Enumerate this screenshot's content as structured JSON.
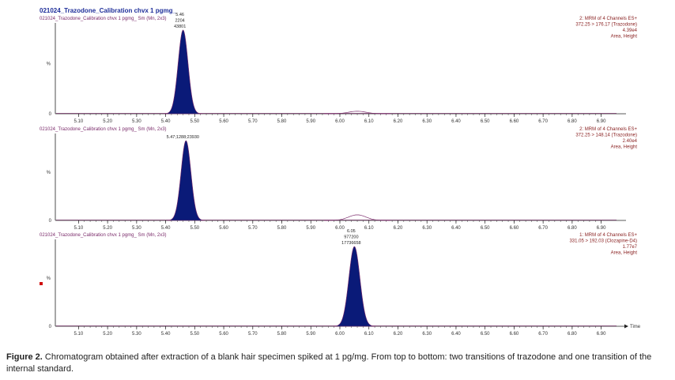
{
  "title": "021024_Trazodone_Calibration chvx 1 pgmg_",
  "caption_label": "Figure 2.",
  "caption_text": " Chromatogram obtained after extraction of a blank hair specimen spiked at 1 pg/mg. From top to bottom: two transitions of trazodone and one transition of the internal standard.",
  "colors": {
    "peak_fill": "#0a1a78",
    "baseline": "#7a2a6a",
    "title": "#1f2f9a",
    "right_text": "#8a2222"
  },
  "chart_data": [
    {
      "type": "line",
      "subtitle": "021024_Trazodone_Calibration chvx 1 pgmg_ Sm (Mn, 2x3)",
      "right_labels": [
        "2: MRM of 4 Channels ES+",
        "372.25 > 176.17 (Trazodone)",
        "4.39e4",
        "Area, Height"
      ],
      "y_tick_labels": [
        "%",
        "0"
      ],
      "xlim": [
        5.02,
        6.98
      ],
      "x_ticks": [
        "5.10",
        "5.20",
        "5.30",
        "5.40",
        "5.50",
        "5.60",
        "5.70",
        "5.80",
        "5.90",
        "6.00",
        "6.10",
        "6.20",
        "6.30",
        "6.40",
        "6.50",
        "6.60",
        "6.70",
        "6.80",
        "6.90"
      ],
      "ylim": [
        0,
        100
      ],
      "peaks": [
        {
          "rt": 5.46,
          "height": 100,
          "width": 0.017,
          "filled": true,
          "label": [
            "5.46",
            "2204",
            "43801"
          ]
        },
        {
          "rt": 6.06,
          "height": 3,
          "width": 0.03,
          "filled": false
        }
      ]
    },
    {
      "type": "line",
      "subtitle": "021024_Trazodone_Calibration chvx 1 pgmg_ Sm (Mn, 2x3)",
      "right_labels": [
        "2: MRM of 4 Channels ES+",
        "372.25 > 148.14 (Trazodone)",
        "2.40e4",
        "Area, Height"
      ],
      "y_tick_labels": [
        "%",
        "0"
      ],
      "xlim": [
        5.02,
        6.98
      ],
      "x_ticks": [
        "5.10",
        "5.20",
        "5.30",
        "5.40",
        "5.50",
        "5.60",
        "5.70",
        "5.80",
        "5.90",
        "6.00",
        "6.10",
        "6.20",
        "6.30",
        "6.40",
        "6.50",
        "6.60",
        "6.70",
        "6.80",
        "6.90"
      ],
      "ylim": [
        0,
        100
      ],
      "peaks": [
        {
          "rt": 5.47,
          "height": 100,
          "width": 0.017,
          "filled": true,
          "label": [
            "5.47;1288;23930"
          ]
        },
        {
          "rt": 6.06,
          "height": 7,
          "width": 0.03,
          "filled": false
        }
      ]
    },
    {
      "type": "line",
      "subtitle": "021024_Trazodone_Calibration chvx 1 pgmg_ Sm (Mn, 2x3)",
      "right_labels": [
        "1: MRM of 4 Channels ES+",
        "331.05 > 192.03 (Clozapine-D4)",
        "1.77e7",
        "Area, Height"
      ],
      "y_tick_labels": [
        "%",
        "0"
      ],
      "xlim": [
        5.02,
        6.98
      ],
      "x_ticks": [
        "5.10",
        "5.20",
        "5.30",
        "5.40",
        "5.50",
        "5.60",
        "5.70",
        "5.80",
        "5.90",
        "6.00",
        "6.10",
        "6.20",
        "6.30",
        "6.40",
        "6.50",
        "6.60",
        "6.70",
        "6.80",
        "6.90"
      ],
      "xlabel": "Time",
      "ylim": [
        0,
        100
      ],
      "peaks": [
        {
          "rt": 6.05,
          "height": 100,
          "width": 0.019,
          "filled": true,
          "label": [
            "6.05",
            "977200",
            "17736658"
          ]
        }
      ]
    }
  ]
}
